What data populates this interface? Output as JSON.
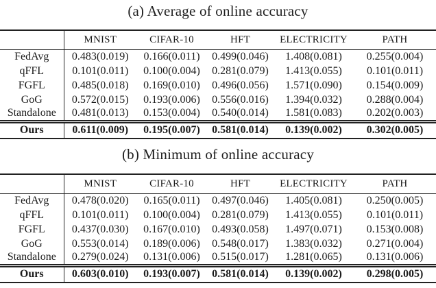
{
  "tables": [
    {
      "caption": "(a) Average of online accuracy",
      "columns": [
        "MNIST",
        "CIFAR-10",
        "HFT",
        "ELECTRICITY",
        "PATH"
      ],
      "rows": [
        {
          "label": "FedAvg",
          "values": [
            "0.483(0.019)",
            "0.166(0.011)",
            "0.499(0.046)",
            "1.408(0.081)",
            "0.255(0.004)"
          ]
        },
        {
          "label": "qFFL",
          "values": [
            "0.101(0.011)",
            "0.100(0.004)",
            "0.281(0.079)",
            "1.413(0.055)",
            "0.101(0.011)"
          ]
        },
        {
          "label": "FGFL",
          "values": [
            "0.485(0.018)",
            "0.169(0.010)",
            "0.496(0.056)",
            "1.571(0.090)",
            "0.154(0.009)"
          ]
        },
        {
          "label": "GoG",
          "values": [
            "0.572(0.015)",
            "0.193(0.006)",
            "0.556(0.016)",
            "1.394(0.032)",
            "0.288(0.004)"
          ]
        },
        {
          "label": "Standalone",
          "values": [
            "0.481(0.013)",
            "0.153(0.004)",
            "0.540(0.014)",
            "1.581(0.083)",
            "0.202(0.003)"
          ]
        }
      ],
      "ours": {
        "label": "Ours",
        "values": [
          "0.611(0.009)",
          "0.195(0.007)",
          "0.581(0.014)",
          "0.139(0.002)",
          "0.302(0.005)"
        ]
      }
    },
    {
      "caption": "(b) Minimum of online accuracy",
      "columns": [
        "MNIST",
        "CIFAR-10",
        "HFT",
        "ELECTRICITY",
        "PATH"
      ],
      "rows": [
        {
          "label": "FedAvg",
          "values": [
            "0.478(0.020)",
            "0.165(0.011)",
            "0.497(0.046)",
            "1.405(0.081)",
            "0.250(0.005)"
          ]
        },
        {
          "label": "qFFL",
          "values": [
            "0.101(0.011)",
            "0.100(0.004)",
            "0.281(0.079)",
            "1.413(0.055)",
            "0.101(0.011)"
          ]
        },
        {
          "label": "FGFL",
          "values": [
            "0.437(0.030)",
            "0.167(0.010)",
            "0.493(0.058)",
            "1.497(0.071)",
            "0.153(0.008)"
          ]
        },
        {
          "label": "GoG",
          "values": [
            "0.553(0.014)",
            "0.189(0.006)",
            "0.548(0.017)",
            "1.383(0.032)",
            "0.271(0.004)"
          ]
        },
        {
          "label": "Standalone",
          "values": [
            "0.279(0.024)",
            "0.131(0.006)",
            "0.515(0.017)",
            "1.281(0.065)",
            "0.131(0.006)"
          ]
        }
      ],
      "ours": {
        "label": "Ours",
        "values": [
          "0.603(0.010)",
          "0.193(0.007)",
          "0.581(0.014)",
          "0.139(0.002)",
          "0.298(0.005)"
        ]
      }
    }
  ],
  "colors": {
    "text": "#1b1b1b",
    "rule": "#222222",
    "background": "#ffffff"
  }
}
